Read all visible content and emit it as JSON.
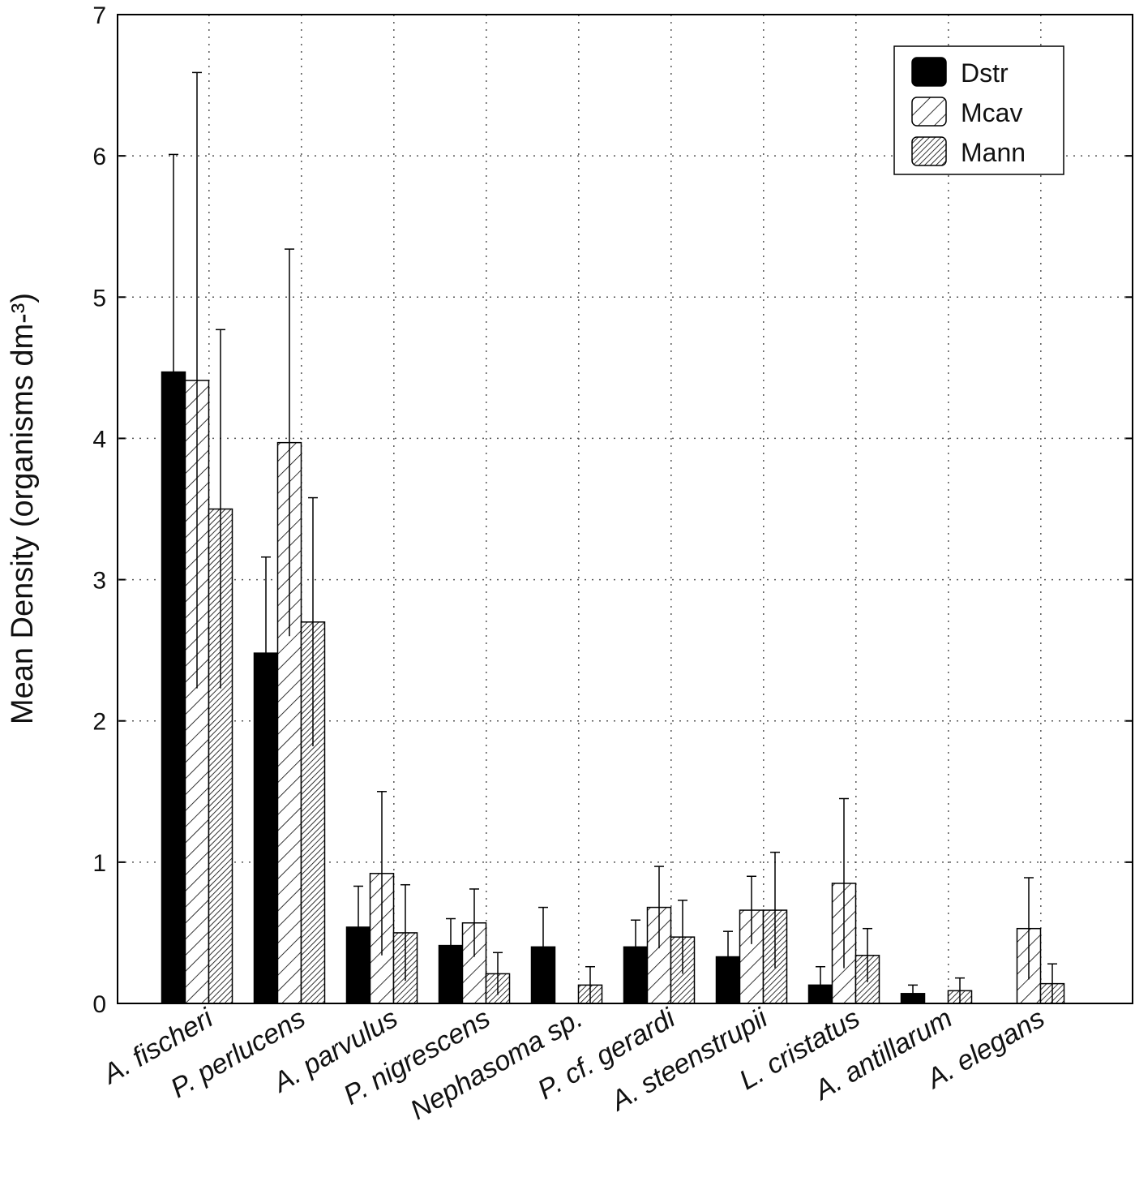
{
  "chart_data": {
    "type": "bar",
    "ylabel": "Mean Density (organisms dm-³)",
    "categories": [
      "A. fischeri",
      "P. perlucens",
      "A. parvulus",
      "P. nigrescens",
      "Nephasoma sp.",
      "P. cf. gerardi",
      "A. steenstrupii",
      "L. cristatus",
      "A. antillarum",
      "A. elegans"
    ],
    "series": [
      {
        "name": "Dstr",
        "color": "#000000",
        "hatch": "none",
        "values": [
          4.47,
          2.48,
          0.54,
          0.41,
          0.4,
          0.4,
          0.33,
          0.13,
          0.07,
          null
        ],
        "errors": [
          1.54,
          0.68,
          0.29,
          0.19,
          0.28,
          0.19,
          0.18,
          0.13,
          0.06,
          null
        ]
      },
      {
        "name": "Mcav",
        "color": "#000000",
        "hatch": "sparse",
        "values": [
          4.41,
          3.97,
          0.92,
          0.57,
          null,
          0.68,
          0.66,
          0.85,
          null,
          0.53
        ],
        "errors": [
          2.18,
          1.37,
          0.58,
          0.24,
          null,
          0.29,
          0.24,
          0.6,
          null,
          0.36
        ]
      },
      {
        "name": "Mann",
        "color": "#000000",
        "hatch": "dense",
        "values": [
          3.5,
          2.7,
          0.5,
          0.21,
          0.13,
          0.47,
          0.66,
          0.34,
          0.09,
          0.14
        ],
        "errors": [
          1.27,
          0.88,
          0.34,
          0.15,
          0.13,
          0.26,
          0.41,
          0.19,
          0.09,
          0.14
        ]
      }
    ],
    "ylim": [
      0,
      7
    ],
    "yticks": [
      0,
      1,
      2,
      3,
      4,
      5,
      6,
      7
    ],
    "grid": true,
    "legend": "upper right"
  }
}
